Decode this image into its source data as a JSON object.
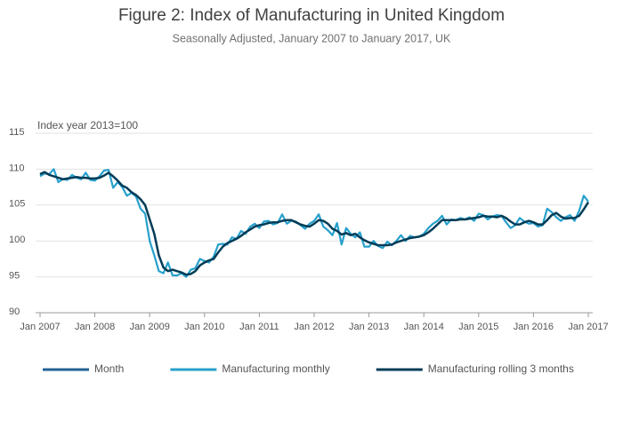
{
  "chart_data": {
    "type": "line",
    "title": "Figure 2: Index of Manufacturing in United Kingdom",
    "subtitle": "Seasonally Adjusted, January 2007 to January 2017, UK",
    "y_label": "Index year 2013=100",
    "ylim": [
      90,
      115
    ],
    "yticks": [
      90,
      95,
      100,
      105,
      110,
      115
    ],
    "xlim": [
      "2007-01",
      "2017-01"
    ],
    "xticks": [
      {
        "value": "2007-01",
        "label": "Jan 2007"
      },
      {
        "value": "2008-01",
        "label": "Jan 2008"
      },
      {
        "value": "2009-01",
        "label": "Jan 2009"
      },
      {
        "value": "2010-01",
        "label": "Jan 2010"
      },
      {
        "value": "2011-01",
        "label": "Jan 2011"
      },
      {
        "value": "2012-01",
        "label": "Jan 2012"
      },
      {
        "value": "2013-01",
        "label": "Jan 2013"
      },
      {
        "value": "2014-01",
        "label": "Jan 2014"
      },
      {
        "value": "2015-01",
        "label": "Jan 2015"
      },
      {
        "value": "2016-01",
        "label": "Jan 2016"
      },
      {
        "value": "2017-01",
        "label": "Jan 2017"
      }
    ],
    "grid": true,
    "legend": "bottom",
    "x": [
      "2007-01",
      "2007-02",
      "2007-03",
      "2007-04",
      "2007-05",
      "2007-06",
      "2007-07",
      "2007-08",
      "2007-09",
      "2007-10",
      "2007-11",
      "2007-12",
      "2008-01",
      "2008-02",
      "2008-03",
      "2008-04",
      "2008-05",
      "2008-06",
      "2008-07",
      "2008-08",
      "2008-09",
      "2008-10",
      "2008-11",
      "2008-12",
      "2009-01",
      "2009-02",
      "2009-03",
      "2009-04",
      "2009-05",
      "2009-06",
      "2009-07",
      "2009-08",
      "2009-09",
      "2009-10",
      "2009-11",
      "2009-12",
      "2010-01",
      "2010-02",
      "2010-03",
      "2010-04",
      "2010-05",
      "2010-06",
      "2010-07",
      "2010-08",
      "2010-09",
      "2010-10",
      "2010-11",
      "2010-12",
      "2011-01",
      "2011-02",
      "2011-03",
      "2011-04",
      "2011-05",
      "2011-06",
      "2011-07",
      "2011-08",
      "2011-09",
      "2011-10",
      "2011-11",
      "2011-12",
      "2012-01",
      "2012-02",
      "2012-03",
      "2012-04",
      "2012-05",
      "2012-06",
      "2012-07",
      "2012-08",
      "2012-09",
      "2012-10",
      "2012-11",
      "2012-12",
      "2013-01",
      "2013-02",
      "2013-03",
      "2013-04",
      "2013-05",
      "2013-06",
      "2013-07",
      "2013-08",
      "2013-09",
      "2013-10",
      "2013-11",
      "2013-12",
      "2014-01",
      "2014-02",
      "2014-03",
      "2014-04",
      "2014-05",
      "2014-06",
      "2014-07",
      "2014-08",
      "2014-09",
      "2014-10",
      "2014-11",
      "2014-12",
      "2015-01",
      "2015-02",
      "2015-03",
      "2015-04",
      "2015-05",
      "2015-06",
      "2015-07",
      "2015-08",
      "2015-09",
      "2015-10",
      "2015-11",
      "2015-12",
      "2016-01",
      "2016-02",
      "2016-03",
      "2016-04",
      "2016-05",
      "2016-06",
      "2016-07",
      "2016-08",
      "2016-09",
      "2016-10",
      "2016-11",
      "2016-12",
      "2017-01"
    ],
    "series": [
      {
        "name": "Month",
        "color": "#206095",
        "values": [
          null,
          null,
          null,
          null,
          null,
          null,
          null,
          null,
          null,
          null,
          null,
          null,
          null,
          null,
          null,
          null,
          null,
          null,
          null,
          null,
          null,
          null,
          null,
          null,
          null,
          null,
          null,
          null,
          null,
          null,
          null,
          null,
          null,
          null,
          null,
          null,
          null,
          null,
          null,
          null,
          null,
          null,
          null,
          null,
          null,
          null,
          null,
          null,
          null,
          null,
          null,
          null,
          null,
          null,
          null,
          null,
          null,
          null,
          null,
          null,
          null,
          null,
          null,
          null,
          null,
          null,
          null,
          null,
          null,
          null,
          null,
          null,
          null,
          null,
          null,
          null,
          null,
          null,
          null,
          null,
          null,
          null,
          null,
          null,
          null,
          null,
          null,
          null,
          null,
          null,
          null,
          null,
          null,
          null,
          null,
          null,
          null,
          null,
          null,
          null,
          null,
          null,
          null,
          null,
          null,
          null,
          null,
          null,
          null,
          null,
          null,
          null,
          null,
          null,
          null,
          null,
          null,
          null,
          null,
          null,
          null
        ]
      },
      {
        "name": "Manufacturing monthly",
        "color": "#27a0cc",
        "values": [
          109.0,
          109.4,
          109.3,
          110.0,
          108.2,
          108.6,
          108.5,
          109.2,
          108.8,
          108.6,
          109.5,
          108.5,
          108.4,
          109.0,
          109.8,
          109.9,
          107.4,
          108.2,
          107.5,
          106.3,
          106.7,
          106.2,
          104.5,
          103.8,
          100.0,
          98.0,
          95.8,
          95.5,
          97.0,
          95.2,
          95.2,
          95.5,
          95.0,
          96.0,
          96.2,
          97.5,
          97.2,
          97.0,
          97.8,
          99.5,
          99.6,
          99.5,
          100.5,
          100.3,
          101.4,
          101.0,
          102.0,
          102.4,
          101.8,
          102.7,
          102.8,
          102.3,
          102.5,
          103.7,
          102.4,
          102.8,
          102.7,
          102.2,
          101.7,
          102.4,
          102.8,
          103.7,
          102.0,
          101.5,
          100.8,
          102.5,
          99.5,
          101.8,
          101.0,
          100.5,
          101.2,
          99.2,
          99.2,
          100.0,
          99.3,
          99.0,
          99.9,
          99.4,
          100.0,
          100.8,
          100.0,
          100.7,
          100.5,
          100.6,
          101.0,
          101.8,
          102.4,
          102.8,
          103.5,
          102.3,
          103.0,
          102.9,
          103.2,
          103.0,
          103.3,
          102.8,
          103.8,
          103.6,
          103.0,
          103.4,
          103.6,
          103.5,
          102.6,
          101.8,
          102.2,
          103.2,
          102.7,
          102.4,
          102.5,
          102.0,
          102.2,
          104.5,
          104.0,
          103.3,
          102.8,
          103.3,
          103.6,
          102.8,
          104.2,
          106.3,
          105.5
        ]
      },
      {
        "name": "Manufacturing rolling 3 months",
        "color": "#003c57",
        "values": [
          109.3,
          109.6,
          109.2,
          109.0,
          108.8,
          108.6,
          108.7,
          108.8,
          108.9,
          108.8,
          108.8,
          108.7,
          108.7,
          108.8,
          109.1,
          109.5,
          109.0,
          108.4,
          107.7,
          107.4,
          106.8,
          106.4,
          105.8,
          105.0,
          103.0,
          101.0,
          98.0,
          96.3,
          95.8,
          96.0,
          95.8,
          95.6,
          95.3,
          95.4,
          95.8,
          96.6,
          97.0,
          97.3,
          97.5,
          98.4,
          99.2,
          99.7,
          100.0,
          100.3,
          100.7,
          101.2,
          101.6,
          102.0,
          102.2,
          102.3,
          102.5,
          102.6,
          102.6,
          102.8,
          102.9,
          102.9,
          102.6,
          102.3,
          102.1,
          102.0,
          102.4,
          102.9,
          102.8,
          102.4,
          101.7,
          101.4,
          100.9,
          101.1,
          100.8,
          101.0,
          100.5,
          100.1,
          99.8,
          99.6,
          99.4,
          99.4,
          99.4,
          99.5,
          99.8,
          100.0,
          100.2,
          100.4,
          100.5,
          100.6,
          100.8,
          101.2,
          101.7,
          102.3,
          102.9,
          102.9,
          102.9,
          102.9,
          103.0,
          103.0,
          103.1,
          103.2,
          103.3,
          103.5,
          103.4,
          103.4,
          103.3,
          103.5,
          103.2,
          102.7,
          102.3,
          102.3,
          102.6,
          102.8,
          102.6,
          102.3,
          102.3,
          102.9,
          103.6,
          103.9,
          103.4,
          103.1,
          103.2,
          103.2,
          103.5,
          104.4,
          105.4
        ]
      }
    ]
  }
}
